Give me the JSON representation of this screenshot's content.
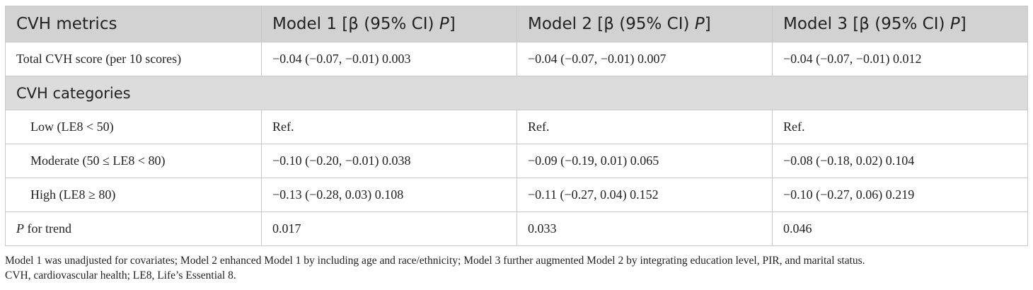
{
  "table": {
    "headers": [
      {
        "prefix": "CVH metrics",
        "italic": "",
        "suffix": ""
      },
      {
        "prefix": "Model 1 [β (95% CI) ",
        "italic": "P",
        "suffix": "]"
      },
      {
        "prefix": "Model 2 [β (95% CI) ",
        "italic": "P",
        "suffix": "]"
      },
      {
        "prefix": "Model 3 [β (95% CI) ",
        "italic": "P",
        "suffix": "]"
      }
    ],
    "total_row": {
      "label": "Total CVH score (per 10 scores)",
      "m1": "−0.04 (−0.07, −0.01) 0.003",
      "m2": "−0.04 (−0.07, −0.01) 0.007",
      "m3": "−0.04 (−0.07, −0.01) 0.012"
    },
    "section_label": "CVH categories",
    "category_rows": [
      {
        "label": "Low (LE8 < 50)",
        "m1": "Ref.",
        "m2": "Ref.",
        "m3": "Ref."
      },
      {
        "label": "Moderate (50 ≤ LE8 < 80)",
        "m1": "−0.10 (−0.20, −0.01) 0.038",
        "m2": "−0.09 (−0.19, 0.01) 0.065",
        "m3": "−0.08 (−0.18, 0.02) 0.104"
      },
      {
        "label": "High (LE8 ≥ 80)",
        "m1": "−0.13 (−0.28, 0.03) 0.108",
        "m2": "−0.11 (−0.27, 0.04) 0.152",
        "m3": "−0.10 (−0.27, 0.06) 0.219"
      }
    ],
    "trend_row": {
      "label_italic": "P",
      "label_rest": " for trend",
      "m1": "0.017",
      "m2": "0.033",
      "m3": "0.046"
    }
  },
  "footnote": {
    "line1": "Model 1 was unadjusted for covariates; Model 2 enhanced Model 1 by including age and race/ethnicity; Model 3 further augmented Model 2 by integrating education level, PIR, and marital status.",
    "line2": "CVH, cardiovascular health; LE8, Life’s Essential 8."
  }
}
